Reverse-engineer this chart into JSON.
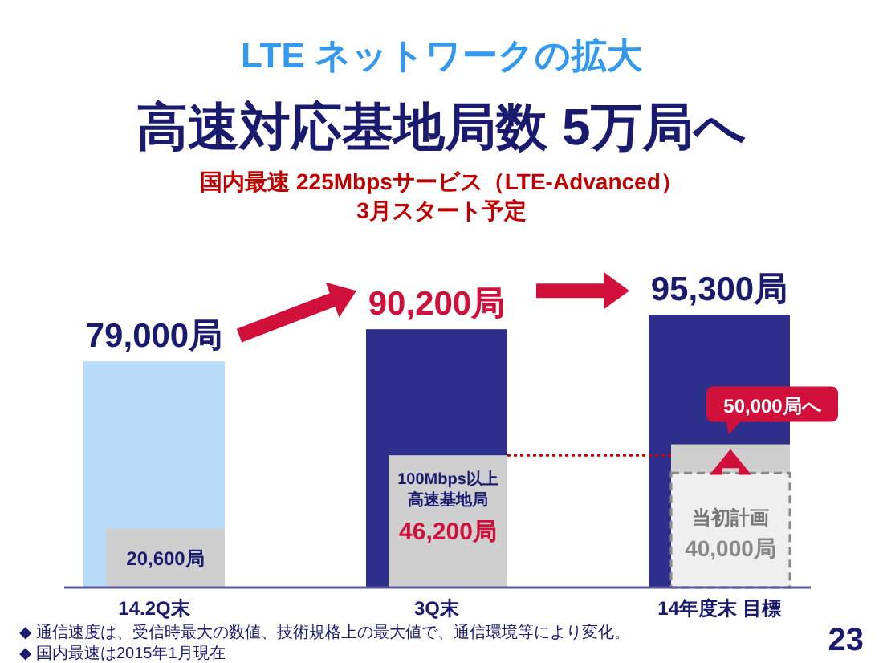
{
  "chart_data": {
    "type": "bar",
    "title": "LTE ネットワークの拡大",
    "subtitle": "高速対応基地局数 5万局へ",
    "categories": [
      "14.2Q末",
      "3Q末",
      "14年度末 目標"
    ],
    "series": [
      {
        "colors": [
          "#b8dcf8",
          "#2e2f8a",
          "#2e2f8a"
        ],
        "values": [
          79000,
          90200,
          95300
        ],
        "value_labels": [
          "79,000局",
          "90,200局",
          "95,300局"
        ]
      },
      {
        "color": "#cfcfcf",
        "values": [
          20600,
          46200,
          50000
        ],
        "value_labels": [
          "20,600局",
          "46,200局",
          "50,000局へ"
        ]
      },
      {
        "name": "当初計画",
        "color": "#efefef",
        "line_style": "dashed",
        "values": [
          null,
          null,
          40000
        ],
        "value_labels": [
          null,
          null,
          "40,000局"
        ]
      }
    ],
    "ref_lines": [
      {
        "axis": "y",
        "value": 46200,
        "color": "#cc0000",
        "line_style": "dotted"
      }
    ],
    "annotations": [
      "国内最速 225Mbpsサービス（LTE-Advanced）",
      "3月スタート予定",
      {
        "text": "100Mbps以上",
        "x": "3Q末",
        "y": 46200
      },
      {
        "text": "高速基地局",
        "x": "3Q末",
        "y": 46200
      },
      "◆ 通信速度は、受信時最大の数値、技術規格上の最大値で、通信環境等により変化。",
      "◆ 国内最速は2015年1月現在",
      "23"
    ]
  }
}
